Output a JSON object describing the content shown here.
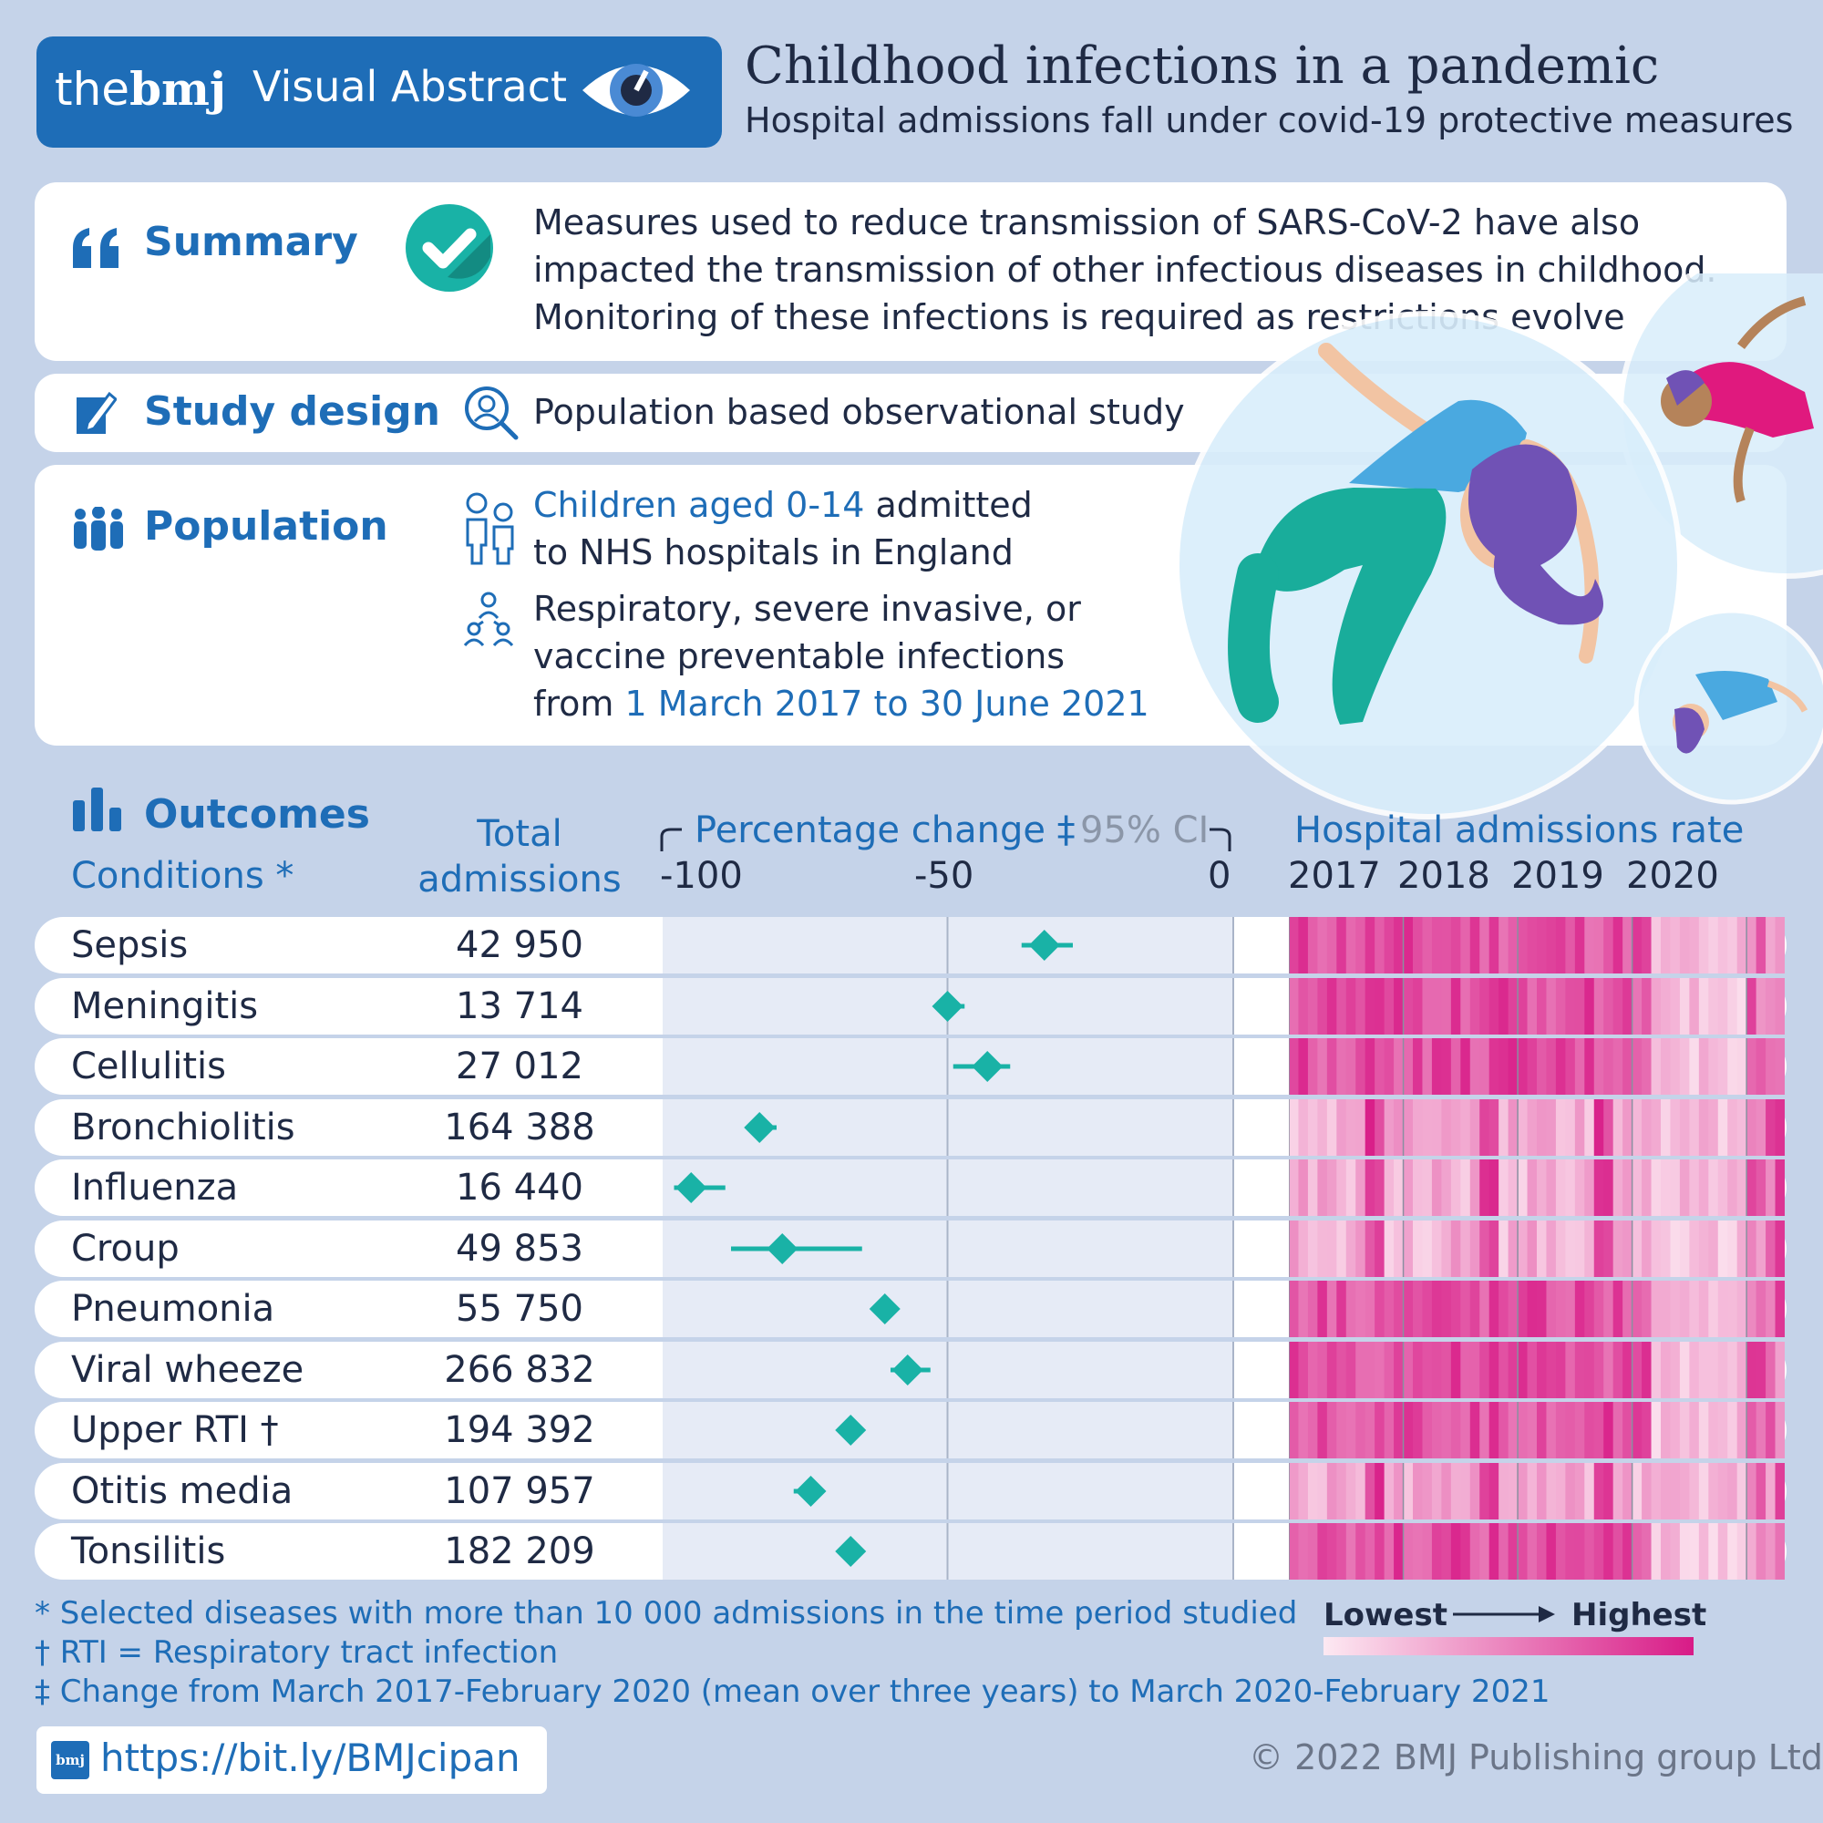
{
  "header": {
    "brand_the": "the",
    "brand_bmj": "bmj",
    "visual_abstract": "Visual Abstract",
    "title": "Childhood infections in a pandemic",
    "subtitle": "Hospital admissions fall under covid-19 protective measures"
  },
  "summary": {
    "label": "Summary",
    "lines": [
      "Measures used to reduce transmission of SARS-CoV-2 have also",
      "impacted the transmission of other infectious diseases in childhood.",
      "Monitoring of these infections is required as restrictions evolve"
    ]
  },
  "study_design": {
    "label": "Study design",
    "text": "Population based observational study"
  },
  "population": {
    "label": "Population",
    "line1_highlight": "Children aged 0-14",
    "line1_rest": " admitted",
    "line2": "to NHS hospitals in England",
    "line3": "Respiratory, severe invasive, or",
    "line4": "vaccine preventable infections",
    "line5_prefix": "from ",
    "line5_highlight": "1 March 2017 to 30 June 2021"
  },
  "outcomes": {
    "label": "Outcomes",
    "conditions_header": "Conditions *",
    "total_header_1": "Total",
    "total_header_2": "admissions",
    "pct_header": "Percentage change ‡",
    "ci_header": "95% CI",
    "rate_header": "Hospital admissions rate",
    "years": [
      "2017",
      "2018",
      "2019",
      "2020"
    ],
    "legend_low": "Lowest",
    "legend_high": "Highest"
  },
  "chart_data": {
    "type": "forest",
    "title": "Percentage change ‡ 95% CI",
    "xlabel": "Percentage change",
    "xlim": [
      -100,
      0
    ],
    "ticks": [
      "-100",
      "-50",
      "0"
    ],
    "tick_values": [
      -100,
      -50,
      0
    ],
    "rows": [
      {
        "condition": "Sepsis",
        "total": "42 950",
        "change": -33,
        "ci": [
          -37,
          -28
        ]
      },
      {
        "condition": "Meningitis",
        "total": "13 714",
        "change": -50,
        "ci": [
          -51,
          -47
        ]
      },
      {
        "condition": "Cellulitis",
        "total": "27 012",
        "change": -43,
        "ci": [
          -49,
          -39
        ]
      },
      {
        "condition": "Bronchiolitis",
        "total": "164 388",
        "change": -83,
        "ci": [
          -85,
          -80
        ]
      },
      {
        "condition": "Influenza",
        "total": "16 440",
        "change": -95,
        "ci": [
          -98,
          -89
        ]
      },
      {
        "condition": "Croup",
        "total": "49 853",
        "change": -79,
        "ci": [
          -88,
          -65
        ]
      },
      {
        "condition": "Pneumonia",
        "total": "55 750",
        "change": -61,
        "ci": [
          -63,
          -60
        ]
      },
      {
        "condition": "Viral wheeze",
        "total": "266 832",
        "change": -57,
        "ci": [
          -60,
          -53
        ]
      },
      {
        "condition": "Upper RTI †",
        "total": "194 392",
        "change": -67,
        "ci": [
          -69,
          -65
        ]
      },
      {
        "condition": "Otitis media",
        "total": "107 957",
        "change": -74,
        "ci": [
          -77,
          -72
        ]
      },
      {
        "condition": "Tonsilitis",
        "total": "182 209",
        "change": -67,
        "ci": [
          -68,
          -66
        ]
      }
    ]
  },
  "footnotes": [
    "* Selected diseases with more than 10 000 admissions in the time period studied",
    "† RTI = Respiratory tract infection",
    "‡ Change from March 2017-February 2020 (mean over three years) to March 2020-February 2021"
  ],
  "link": "https://bit.ly/BMJcipan",
  "link_logo": "bmj",
  "copyright": "© 2022 BMJ Publishing group Ltd.",
  "colors": {
    "background": "#c5d3e9",
    "brand_blue": "#1e6db7",
    "teal": "#19b2a6",
    "magenta": "#d81b87"
  }
}
